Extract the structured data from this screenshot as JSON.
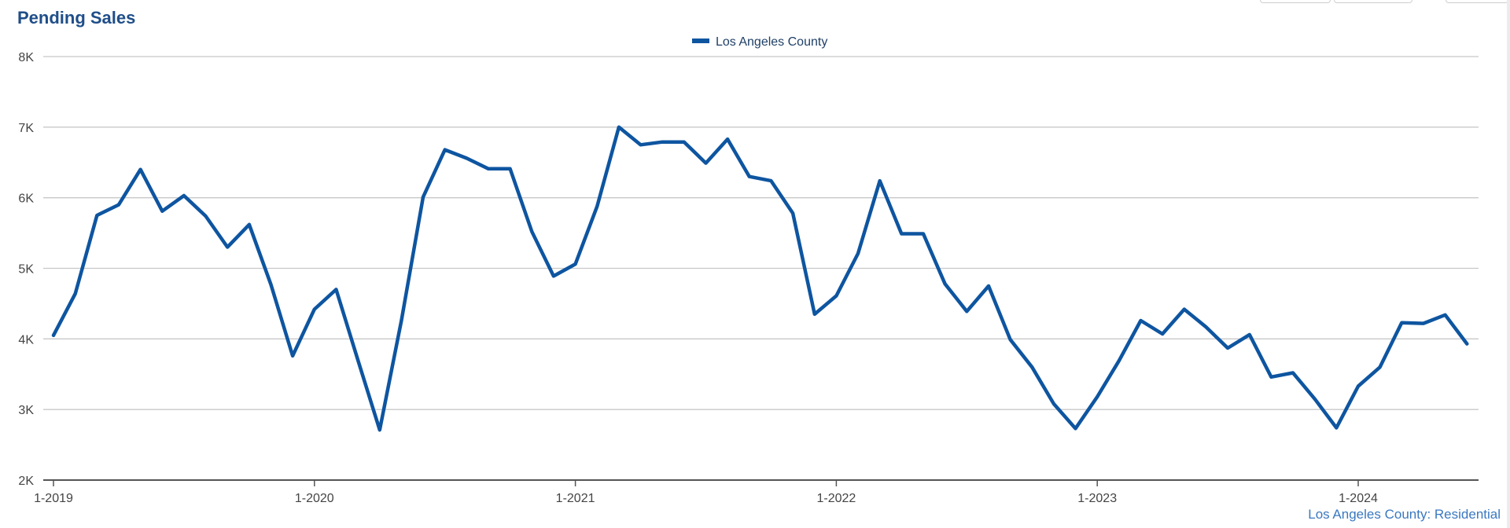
{
  "title": "Pending Sales",
  "source_label": "Los Angeles County: Residential",
  "colors": {
    "series": "#0e55a0",
    "title": "#1f4e89",
    "grid": "#c8c8c8",
    "axis": "#555555",
    "tick_text": "#444444"
  },
  "chart_data": {
    "type": "line",
    "title": "Pending Sales",
    "xlabel": "",
    "ylabel": "",
    "ylim": [
      2000,
      8000
    ],
    "yticks": [
      2000,
      3000,
      4000,
      5000,
      6000,
      7000,
      8000
    ],
    "ytick_labels": [
      "2K",
      "3K",
      "4K",
      "5K",
      "6K",
      "7K",
      "8K"
    ],
    "xtick_labels": [
      "1-2019",
      "1-2020",
      "1-2021",
      "1-2022",
      "1-2023",
      "1-2024"
    ],
    "xtick_index": [
      0,
      12,
      24,
      36,
      48,
      60
    ],
    "grid": true,
    "legend": "top-center",
    "series": [
      {
        "name": "Los Angeles County",
        "values": [
          4050,
          4640,
          5750,
          5900,
          6400,
          5810,
          6030,
          5740,
          5300,
          5620,
          4770,
          3760,
          4420,
          4700,
          3700,
          2710,
          4260,
          6010,
          6680,
          6560,
          6410,
          6410,
          5520,
          4890,
          5060,
          5880,
          7000,
          6750,
          6790,
          6790,
          6490,
          6830,
          6300,
          6240,
          5780,
          4350,
          4610,
          5210,
          6240,
          5490,
          5490,
          4780,
          4390,
          4750,
          3990,
          3600,
          3080,
          2730,
          3180,
          3690,
          4260,
          4070,
          4420,
          4170,
          3870,
          4060,
          3460,
          3520,
          3150,
          2740,
          3330,
          3600,
          4230,
          4220,
          4340,
          3930
        ]
      }
    ]
  }
}
